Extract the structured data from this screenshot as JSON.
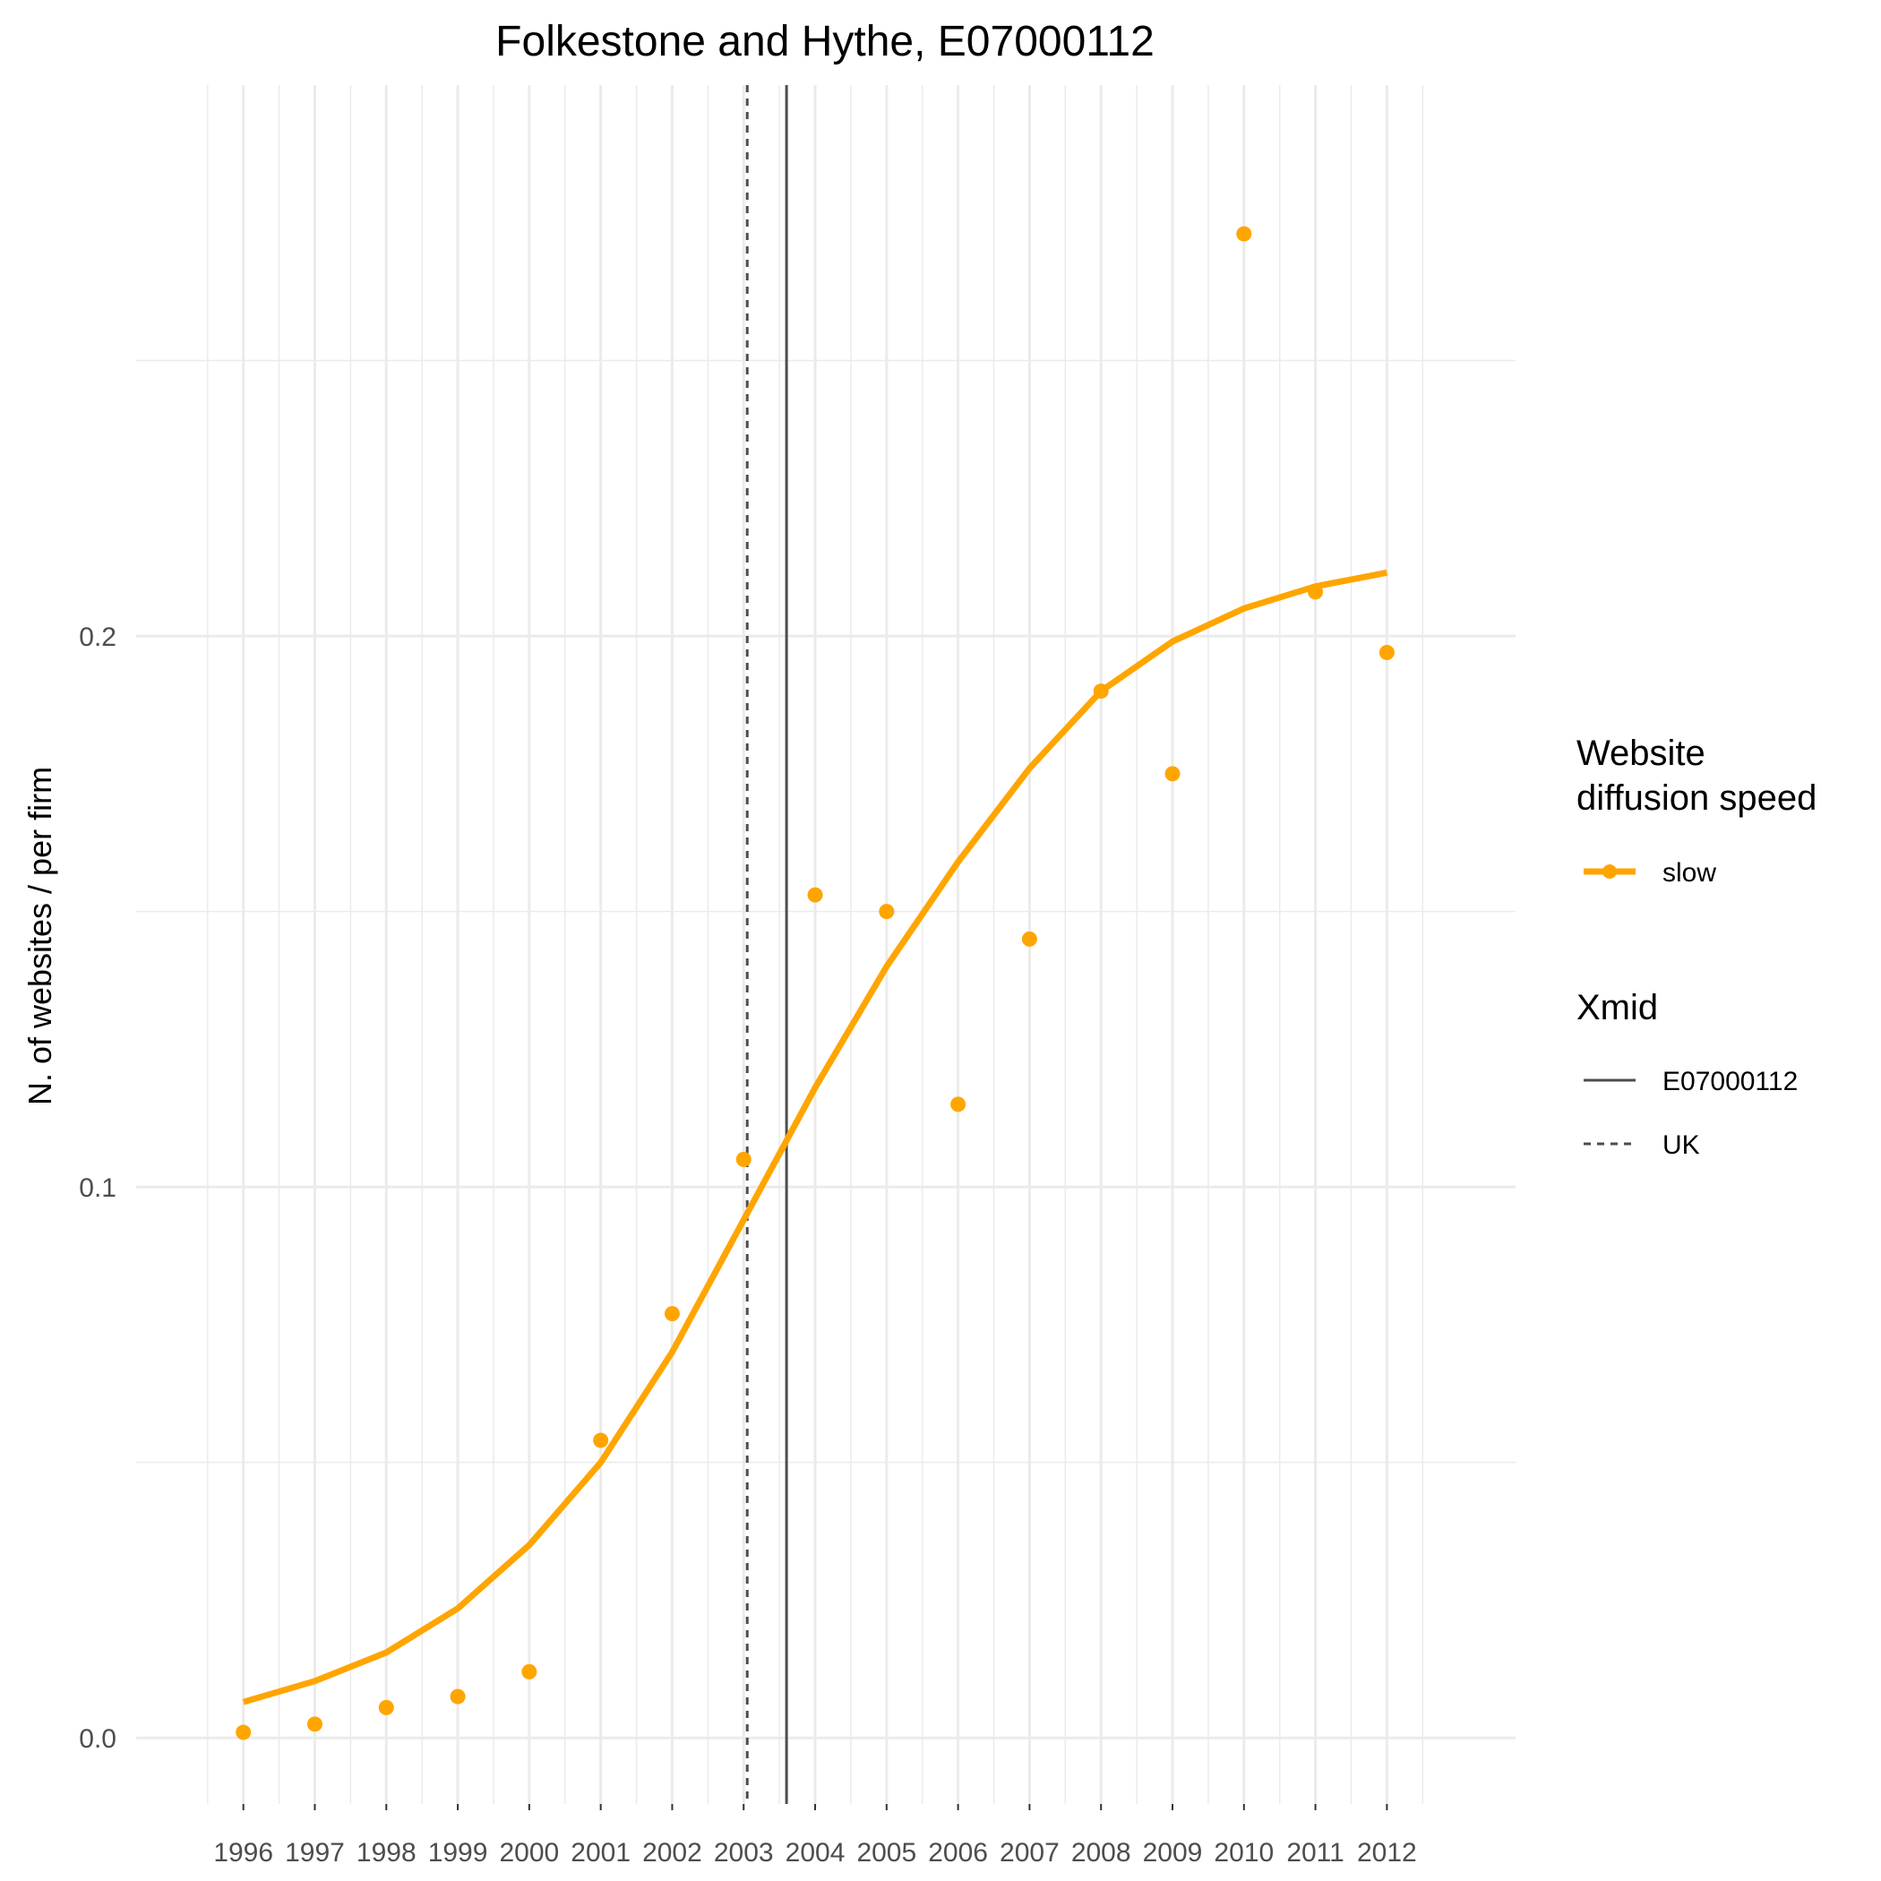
{
  "chart_data": {
    "type": "line",
    "title": "Folkestone and Hythe, E07000112",
    "xlabel": "",
    "ylabel": "N. of websites / per firm",
    "x": [
      1996,
      1997,
      1998,
      1999,
      2000,
      2001,
      2002,
      2003,
      2004,
      2005,
      2006,
      2007,
      2008,
      2009,
      2010,
      2011,
      2012
    ],
    "x_tick_labels": [
      "1996",
      "1997",
      "1998",
      "1999",
      "2000",
      "2001",
      "2002",
      "2003",
      "2004",
      "2005",
      "2006",
      "2007",
      "2008",
      "2009",
      "2010",
      "2011",
      "2012"
    ],
    "y_ticks": [
      0.0,
      0.1,
      0.2
    ],
    "y_tick_labels": [
      "0.0",
      "0.1",
      "0.2"
    ],
    "xlim": [
      1994.5,
      2013.8
    ],
    "ylim": [
      -0.012,
      0.3
    ],
    "grid": true,
    "series": [
      {
        "name": "slow",
        "color": "#FFA500",
        "points_y": [
          0.001,
          0.0025,
          0.0055,
          0.0075,
          0.012,
          0.054,
          0.077,
          0.105,
          0.153,
          0.15,
          0.115,
          0.145,
          0.19,
          0.175,
          0.273,
          0.208,
          0.197
        ],
        "fit_y": [
          0.0065,
          0.0103,
          0.0155,
          0.0235,
          0.035,
          0.05,
          0.07,
          0.094,
          0.118,
          0.14,
          0.159,
          0.176,
          0.19,
          0.199,
          0.205,
          0.209,
          0.2115
        ]
      }
    ],
    "vlines": [
      {
        "name": "E07000112",
        "x": 2003.6,
        "style": "solid",
        "color": "#4d4d4d"
      },
      {
        "name": "UK",
        "x": 2003.05,
        "style": "dashed",
        "color": "#4d4d4d"
      }
    ],
    "legend": {
      "placement": "right",
      "groups": [
        {
          "title_lines": [
            "Website",
            "diffusion speed"
          ],
          "entries": [
            "slow"
          ]
        },
        {
          "title_lines": [
            "Xmid"
          ],
          "entries": [
            "E07000112",
            "UK"
          ]
        }
      ]
    }
  }
}
